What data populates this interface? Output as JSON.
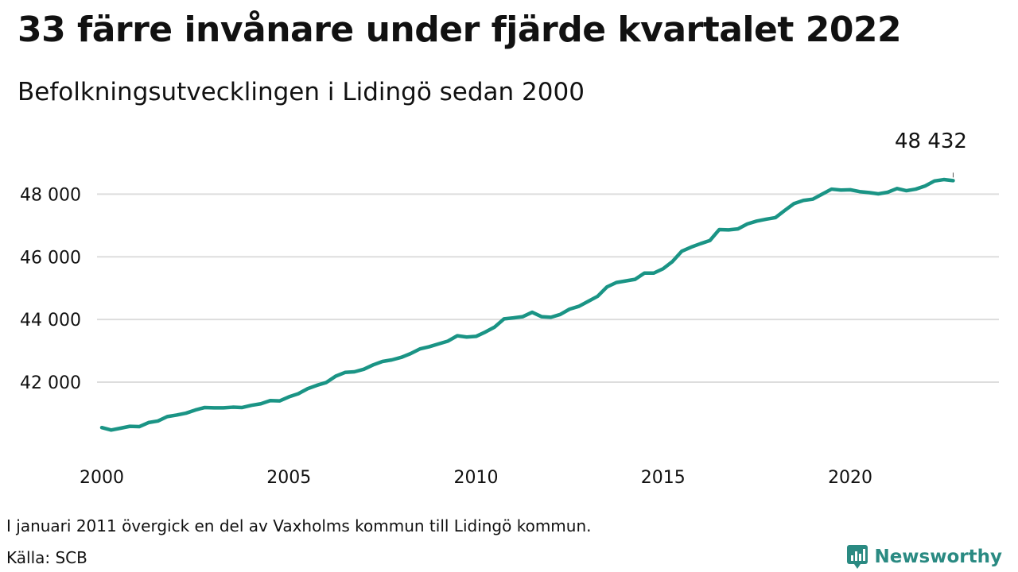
{
  "header": {
    "title": "33 färre invånare under fjärde kvartalet 2022",
    "subtitle": "Befolkningsutvecklingen i Lidingö sedan 2000"
  },
  "footer": {
    "note": "I januari 2011 övergick en del av Vaxholms kommun till Lidingö kommun.",
    "source": "Källa: SCB",
    "brand": "Newsworthy"
  },
  "colors": {
    "line": "#1a9485",
    "grid": "#dddddd",
    "brand": "#2a8a82"
  },
  "chart_data": {
    "type": "line",
    "title": "33 färre invånare under fjärde kvartalet 2022",
    "subtitle": "Befolkningsutvecklingen i Lidingö sedan 2000",
    "xlabel": "",
    "ylabel": "",
    "x_ticks": [
      "2000",
      "2005",
      "2010",
      "2015",
      "2020"
    ],
    "y_ticks": [
      "42 000",
      "44 000",
      "46 000",
      "48 000"
    ],
    "xlim": [
      2000,
      2023.25
    ],
    "ylim": [
      40200,
      49100
    ],
    "grid": true,
    "annotation": {
      "text": "48 432",
      "x": 2022.75,
      "y": 48432
    },
    "series": [
      {
        "x": [
          2000.0,
          2000.25,
          2000.5,
          2000.75,
          2001.0,
          2001.25,
          2001.5,
          2001.75,
          2002.0,
          2002.25,
          2002.5,
          2002.75,
          2003.0,
          2003.25,
          2003.5,
          2003.75,
          2004.0,
          2004.25,
          2004.5,
          2004.75,
          2005.0,
          2005.25,
          2005.5,
          2005.75,
          2006.0,
          2006.25,
          2006.5,
          2006.75,
          2007.0,
          2007.25,
          2007.5,
          2007.75,
          2008.0,
          2008.25,
          2008.5,
          2008.75,
          2009.0,
          2009.25,
          2009.5,
          2009.75,
          2010.0,
          2010.25,
          2010.5,
          2010.75,
          2011.0,
          2011.25,
          2011.5,
          2011.75,
          2012.0,
          2012.25,
          2012.5,
          2012.75,
          2013.0,
          2013.25,
          2013.5,
          2013.75,
          2014.0,
          2014.25,
          2014.5,
          2014.75,
          2015.0,
          2015.25,
          2015.5,
          2015.75,
          2016.0,
          2016.25,
          2016.5,
          2016.75,
          2017.0,
          2017.25,
          2017.5,
          2017.75,
          2018.0,
          2018.25,
          2018.5,
          2018.75,
          2019.0,
          2019.25,
          2019.5,
          2019.75,
          2020.0,
          2020.25,
          2020.5,
          2020.75,
          2021.0,
          2021.25,
          2021.5,
          2021.75,
          2022.0,
          2022.25,
          2022.5,
          2022.75
        ],
        "values": [
          40550,
          40470,
          40530,
          40590,
          40580,
          40710,
          40760,
          40900,
          40950,
          41010,
          41110,
          41190,
          41180,
          41180,
          41200,
          41190,
          41260,
          41310,
          41410,
          41400,
          41530,
          41630,
          41790,
          41900,
          41990,
          42190,
          42310,
          42330,
          42410,
          42550,
          42660,
          42710,
          42790,
          42910,
          43060,
          43130,
          43220,
          43310,
          43480,
          43440,
          43460,
          43600,
          43760,
          44020,
          44050,
          44090,
          44230,
          44090,
          44070,
          44160,
          44330,
          44420,
          44580,
          44740,
          45040,
          45180,
          45230,
          45280,
          45480,
          45480,
          45620,
          45850,
          46180,
          46310,
          46420,
          46520,
          46870,
          46860,
          46890,
          47050,
          47140,
          47200,
          47250,
          47480,
          47700,
          47800,
          47840,
          48000,
          48160,
          48130,
          48140,
          48080,
          48050,
          48010,
          48060,
          48180,
          48110,
          48160,
          48260,
          48420,
          48465,
          48432
        ]
      }
    ]
  }
}
